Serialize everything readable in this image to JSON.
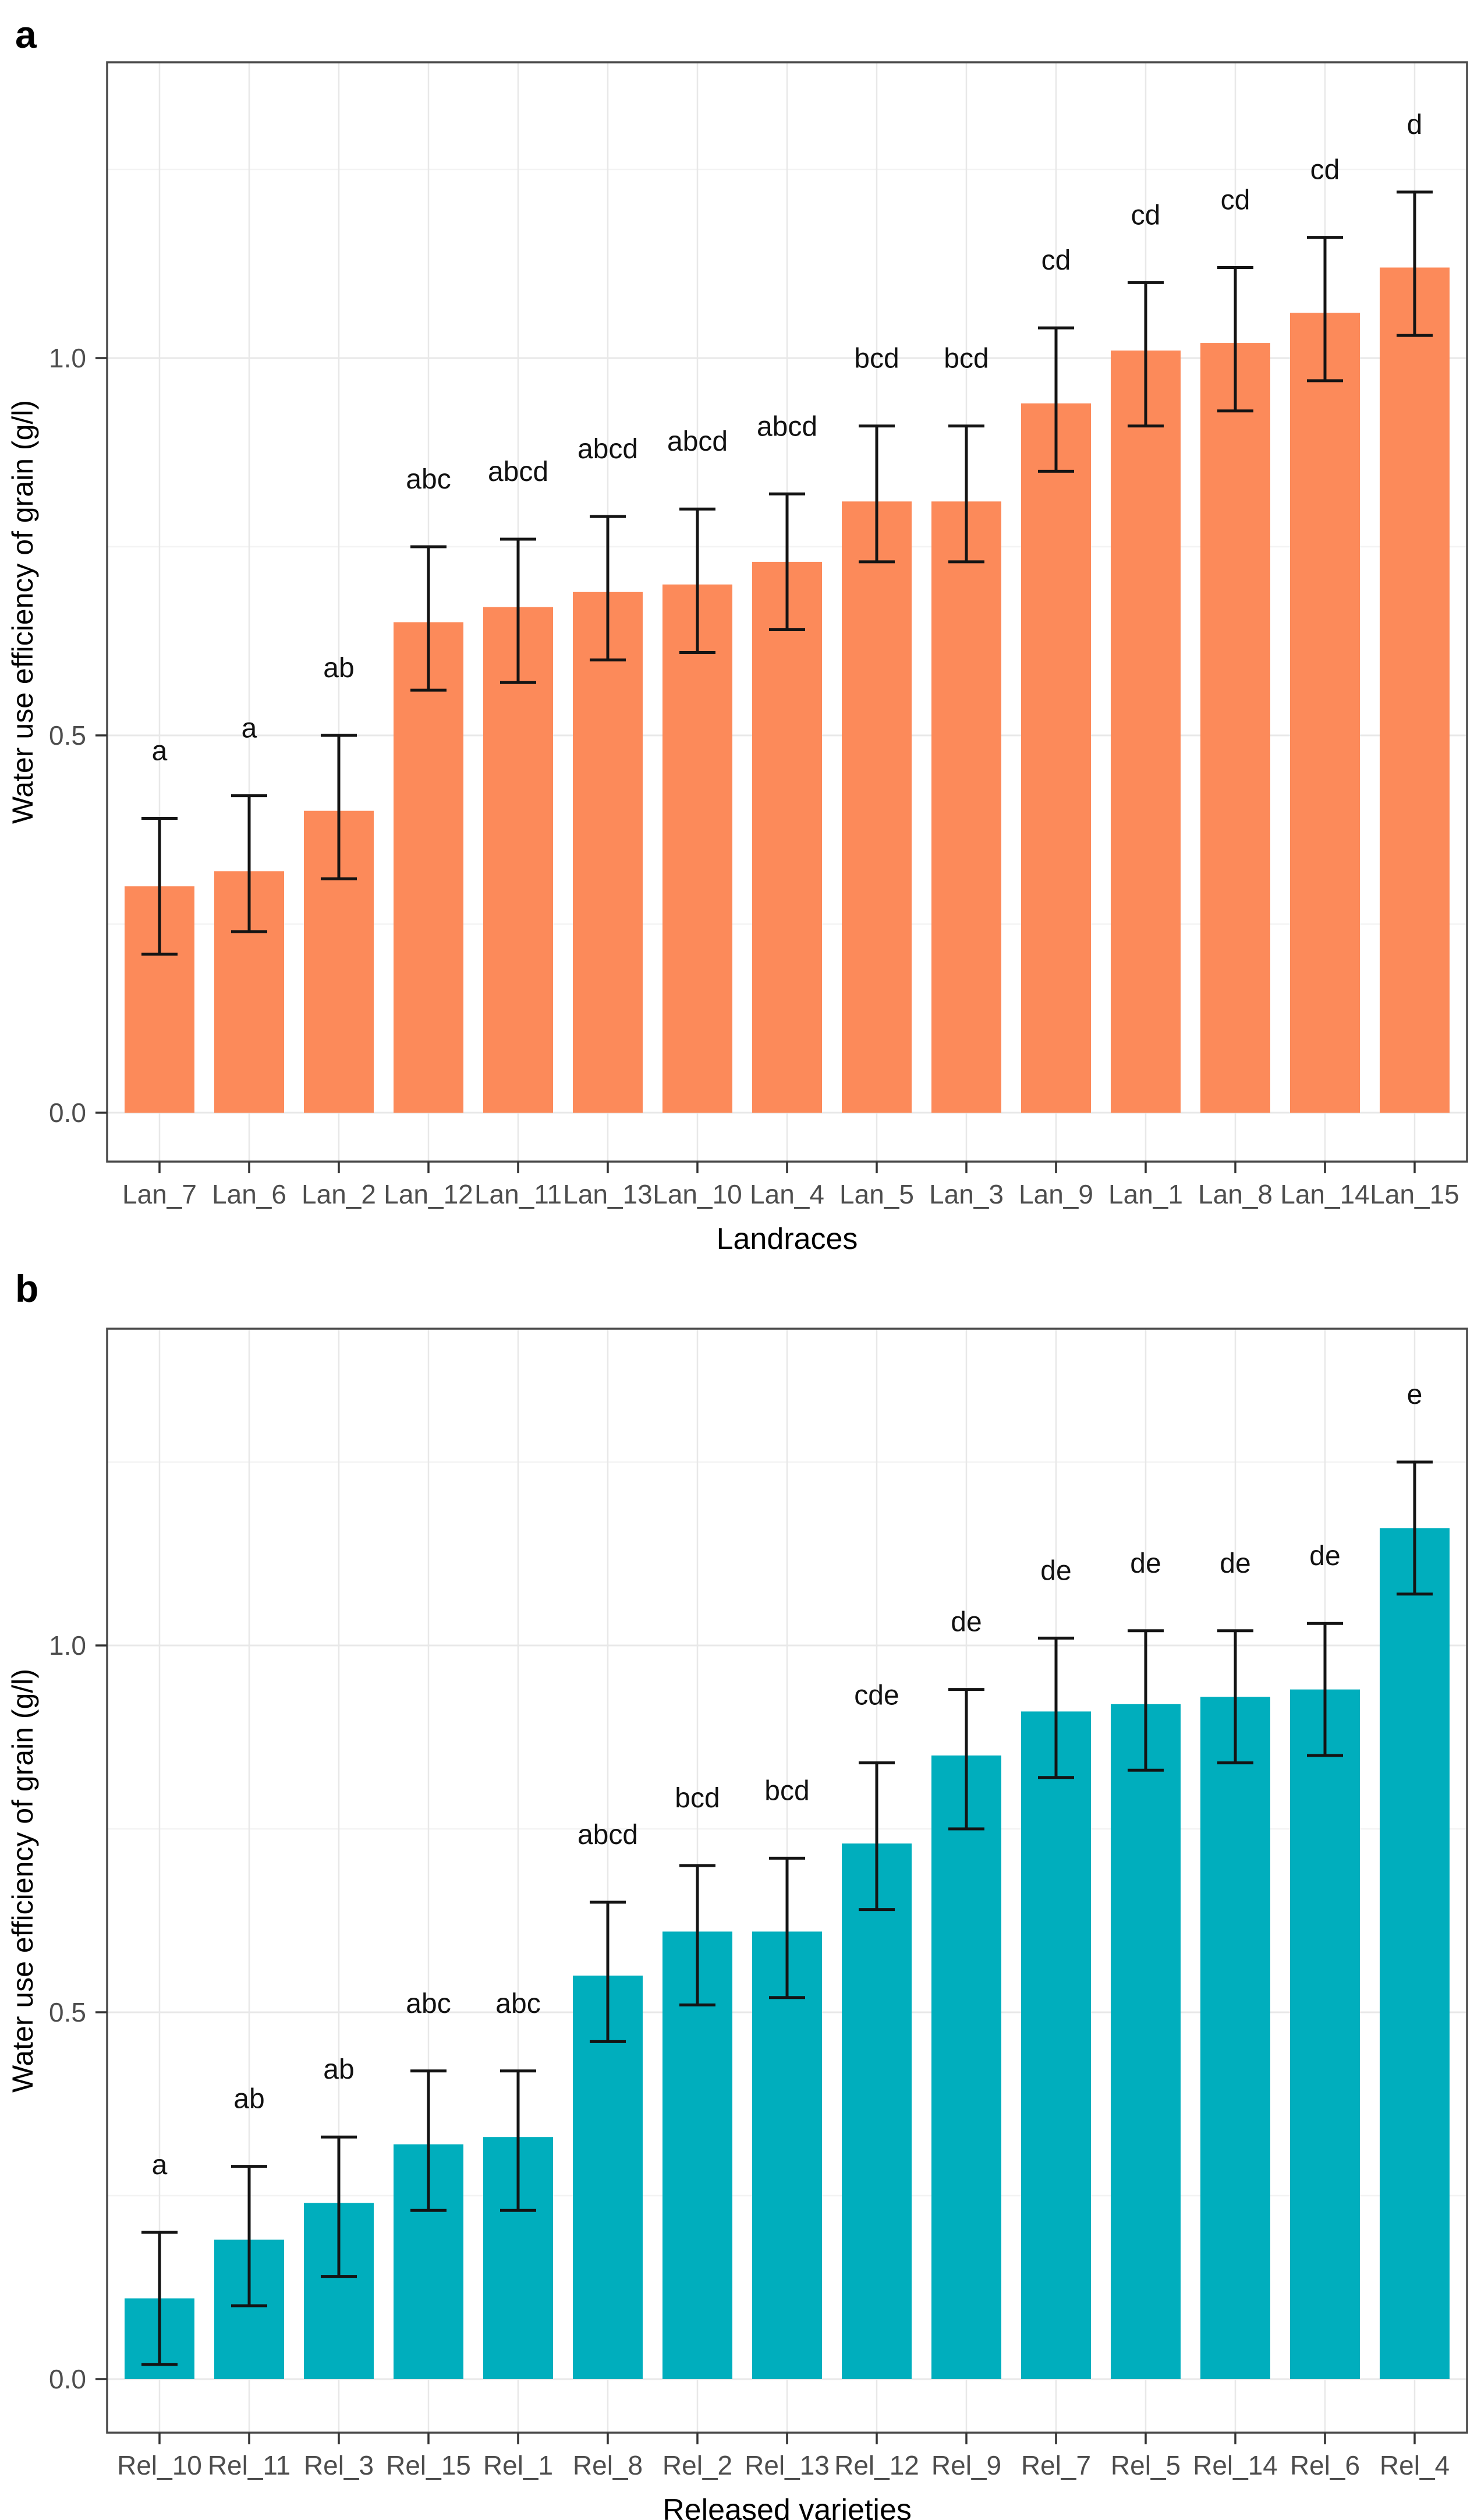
{
  "chart_data": [
    {
      "type": "bar",
      "panel_label": "a",
      "bar_color": "#FC8A5A",
      "xlabel": "Landraces",
      "ylabel": "Water use efficiency of grain (g/l)",
      "ytick_values": [
        0.0,
        0.5,
        1.0
      ],
      "ytick_labels": [
        "0.0",
        "0.5",
        "1.0"
      ],
      "minor_gridlines": [
        0.25,
        0.75,
        1.25
      ],
      "ylim": [
        -0.065,
        1.39
      ],
      "grid": "on",
      "categories": [
        "Lan_7",
        "Lan_6",
        "Lan_2",
        "Lan_12",
        "Lan_11",
        "Lan_13",
        "Lan_10",
        "Lan_4",
        "Lan_5",
        "Lan_3",
        "Lan_9",
        "Lan_1",
        "Lan_8",
        "Lan_14",
        "Lan_15"
      ],
      "values": [
        0.3,
        0.32,
        0.4,
        0.65,
        0.67,
        0.69,
        0.7,
        0.73,
        0.81,
        0.81,
        0.94,
        1.01,
        1.02,
        1.06,
        1.12
      ],
      "error_low": [
        0.21,
        0.24,
        0.31,
        0.56,
        0.57,
        0.6,
        0.61,
        0.64,
        0.73,
        0.73,
        0.85,
        0.91,
        0.93,
        0.97,
        1.03
      ],
      "error_high": [
        0.39,
        0.42,
        0.5,
        0.75,
        0.76,
        0.79,
        0.8,
        0.82,
        0.91,
        0.91,
        1.04,
        1.1,
        1.12,
        1.16,
        1.22
      ],
      "letters": [
        "a",
        "a",
        "ab",
        "abc",
        "abcd",
        "abcd",
        "abcd",
        "abcd",
        "bcd",
        "bcd",
        "cd",
        "cd",
        "cd",
        "cd",
        "d"
      ]
    },
    {
      "type": "bar",
      "panel_label": "b",
      "bar_color": "#00AEBD",
      "xlabel": "Released varieties",
      "ylabel": "Water use efficiency of grain (g/l)",
      "ytick_values": [
        0.0,
        0.5,
        1.0
      ],
      "ytick_labels": [
        "0.0",
        "0.5",
        "1.0"
      ],
      "minor_gridlines": [
        0.25,
        0.75,
        1.25
      ],
      "ylim": [
        -0.075,
        1.43
      ],
      "grid": "on",
      "categories": [
        "Rel_10",
        "Rel_11",
        "Rel_3",
        "Rel_15",
        "Rel_1",
        "Rel_8",
        "Rel_2",
        "Rel_13",
        "Rel_12",
        "Rel_9",
        "Rel_7",
        "Rel_5",
        "Rel_14",
        "Rel_6",
        "Rel_4"
      ],
      "values": [
        0.11,
        0.19,
        0.24,
        0.32,
        0.33,
        0.55,
        0.61,
        0.61,
        0.73,
        0.85,
        0.91,
        0.92,
        0.93,
        0.94,
        1.16
      ],
      "error_low": [
        0.02,
        0.1,
        0.14,
        0.23,
        0.23,
        0.46,
        0.51,
        0.52,
        0.64,
        0.75,
        0.82,
        0.83,
        0.84,
        0.85,
        1.07
      ],
      "error_high": [
        0.2,
        0.29,
        0.33,
        0.42,
        0.42,
        0.65,
        0.7,
        0.71,
        0.84,
        0.94,
        1.01,
        1.02,
        1.02,
        1.03,
        1.25
      ],
      "letters": [
        "a",
        "ab",
        "ab",
        "abc",
        "abc",
        "abcd",
        "bcd",
        "bcd",
        "cde",
        "de",
        "de",
        "de",
        "de",
        "de",
        "e"
      ]
    }
  ],
  "style": {
    "panel_border_color": "#4A4A4A",
    "major_grid_color": "#E8E8E8",
    "minor_grid_color": "#F3F3F3",
    "tick_color": "#333333",
    "tick_label_color": "#4D4D4D",
    "axis_title_color": "#000000",
    "errorbar_color": "#141414",
    "letter_color": "#111111"
  }
}
